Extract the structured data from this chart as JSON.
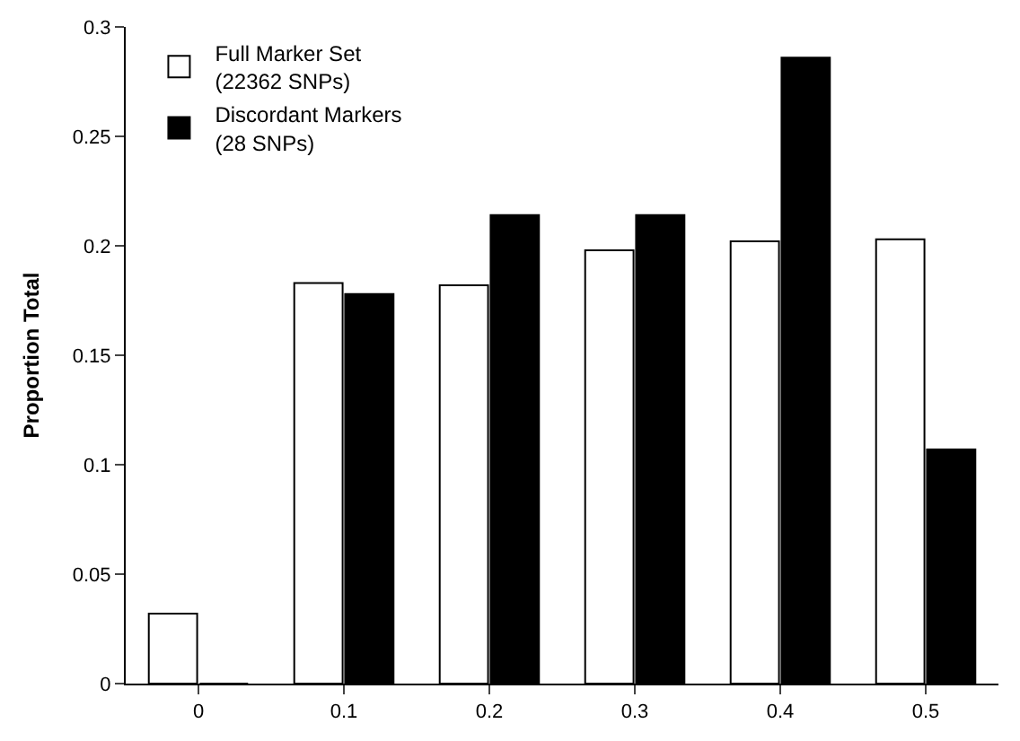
{
  "chart_data": {
    "type": "bar",
    "ylabel": "Proportion Total",
    "categories": [
      "0",
      "0.1",
      "0.2",
      "0.3",
      "0.4",
      "0.5"
    ],
    "series": [
      {
        "name": "Full Marker Set\n(22362 SNPs)",
        "color": "#ffffff",
        "values": [
          0.032,
          0.183,
          0.182,
          0.198,
          0.202,
          0.203
        ]
      },
      {
        "name": "Discordant Markers\n(28 SNPs)",
        "color": "#000000",
        "values": [
          0,
          0.178,
          0.214,
          0.214,
          0.286,
          0.107
        ]
      }
    ],
    "ylim": [
      0,
      0.3
    ],
    "yticks": [
      0,
      0.05,
      0.1,
      0.15,
      0.2,
      0.25,
      0.3
    ],
    "legend": "top left"
  }
}
